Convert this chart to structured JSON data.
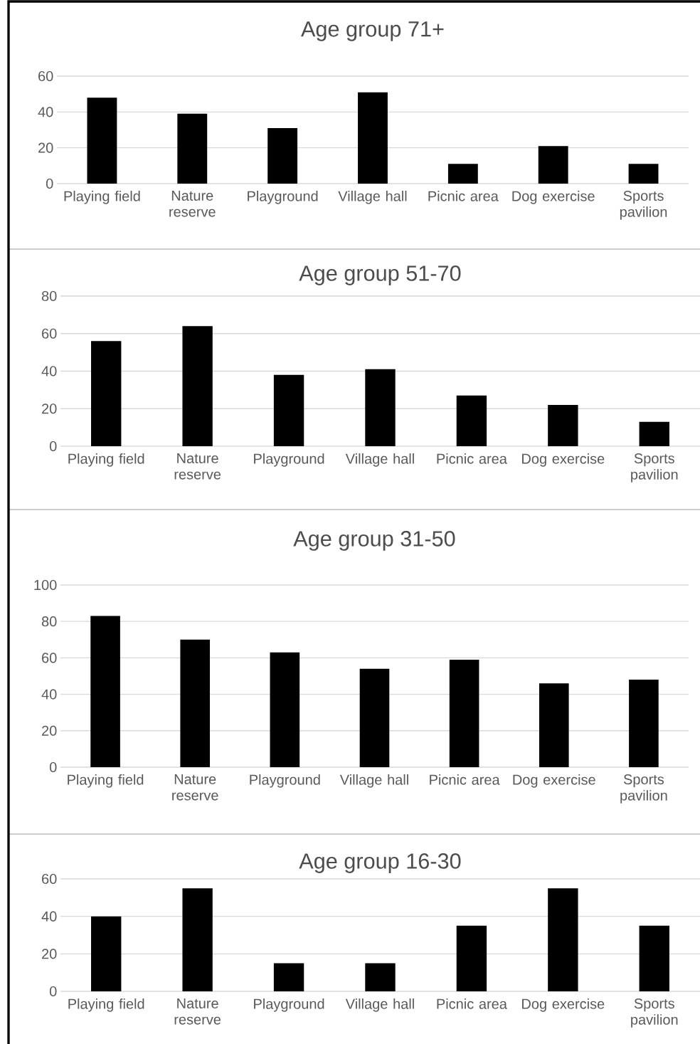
{
  "chart_data": [
    {
      "type": "bar",
      "title": "Age group 71+",
      "categories": [
        "Playing field",
        "Nature reserve",
        "Playground",
        "Village hall",
        "Picnic area",
        "Dog exercise",
        "Sports pavilion"
      ],
      "values": [
        48,
        39,
        31,
        51,
        11,
        21,
        11
      ],
      "color": "#000000",
      "ylim": [
        0,
        60
      ],
      "yticks": [
        0,
        20,
        40,
        60
      ],
      "grid": "y"
    },
    {
      "type": "bar",
      "title": "Age group 51-70",
      "categories": [
        "Playing field",
        "Nature reserve",
        "Playground",
        "Village hall",
        "Picnic area",
        "Dog exercise",
        "Sports pavilion"
      ],
      "values": [
        56,
        64,
        38,
        41,
        27,
        22,
        13
      ],
      "color": "#000000",
      "ylim": [
        0,
        80
      ],
      "yticks": [
        0,
        20,
        40,
        60,
        80
      ],
      "grid": "y"
    },
    {
      "type": "bar",
      "title": "Age group 31-50",
      "categories": [
        "Playing field",
        "Nature reserve",
        "Playground",
        "Village hall",
        "Picnic area",
        "Dog exercise",
        "Sports pavilion"
      ],
      "values": [
        83,
        70,
        63,
        54,
        59,
        46,
        48
      ],
      "color": "#000000",
      "ylim": [
        0,
        100
      ],
      "yticks": [
        0,
        20,
        40,
        60,
        80,
        100
      ],
      "grid": "y"
    },
    {
      "type": "bar",
      "title": "Age group 16-30",
      "categories": [
        "Playing field",
        "Nature reserve",
        "Playground",
        "Village hall",
        "Picnic area",
        "Dog exercise",
        "Sports pavilion"
      ],
      "values": [
        40,
        55,
        15,
        15,
        35,
        55,
        35
      ],
      "color": "#000000",
      "ylim": [
        0,
        60
      ],
      "yticks": [
        0,
        20,
        40,
        60
      ],
      "grid": "y"
    }
  ]
}
